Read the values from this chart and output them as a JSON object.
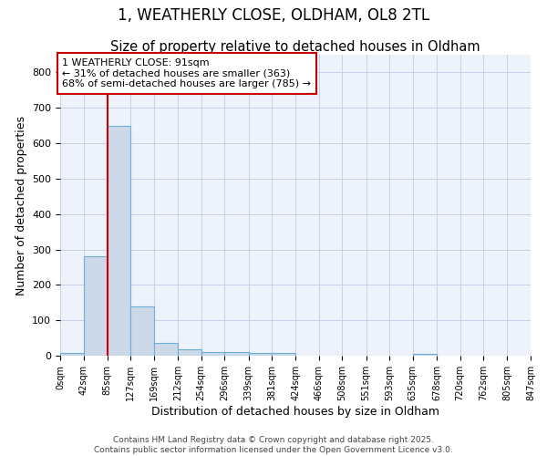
{
  "title_line1": "1, WEATHERLY CLOSE, OLDHAM, OL8 2TL",
  "title_line2": "Size of property relative to detached houses in Oldham",
  "xlabel": "Distribution of detached houses by size in Oldham",
  "ylabel": "Number of detached properties",
  "bar_edges": [
    0,
    42,
    85,
    127,
    169,
    212,
    254,
    296,
    339,
    381,
    424,
    466,
    508,
    551,
    593,
    635,
    678,
    720,
    762,
    805,
    847
  ],
  "bar_heights": [
    7,
    280,
    650,
    140,
    35,
    18,
    10,
    10,
    8,
    8,
    0,
    0,
    0,
    0,
    0,
    6,
    0,
    0,
    0,
    0
  ],
  "bar_color": "#cdd9e8",
  "bar_edgecolor": "#6baed6",
  "vline_x": 85,
  "vline_color": "#cc0000",
  "annotation_text": "1 WEATHERLY CLOSE: 91sqm\n← 31% of detached houses are smaller (363)\n68% of semi-detached houses are larger (785) →",
  "ylim": [
    0,
    850
  ],
  "yticks": [
    0,
    100,
    200,
    300,
    400,
    500,
    600,
    700,
    800
  ],
  "xtick_labels": [
    "0sqm",
    "42sqm",
    "85sqm",
    "127sqm",
    "169sqm",
    "212sqm",
    "254sqm",
    "296sqm",
    "339sqm",
    "381sqm",
    "424sqm",
    "466sqm",
    "508sqm",
    "551sqm",
    "593sqm",
    "635sqm",
    "678sqm",
    "720sqm",
    "762sqm",
    "805sqm",
    "847sqm"
  ],
  "footer_line1": "Contains HM Land Registry data © Crown copyright and database right 2025.",
  "footer_line2": "Contains public sector information licensed under the Open Government Licence v3.0.",
  "background_color": "#eef2fb",
  "grid_color": "#c5cfe8",
  "title_fontsize": 12,
  "subtitle_fontsize": 10.5,
  "axis_label_fontsize": 9,
  "tick_fontsize": 7,
  "annotation_fontsize": 8,
  "footer_fontsize": 6.5
}
